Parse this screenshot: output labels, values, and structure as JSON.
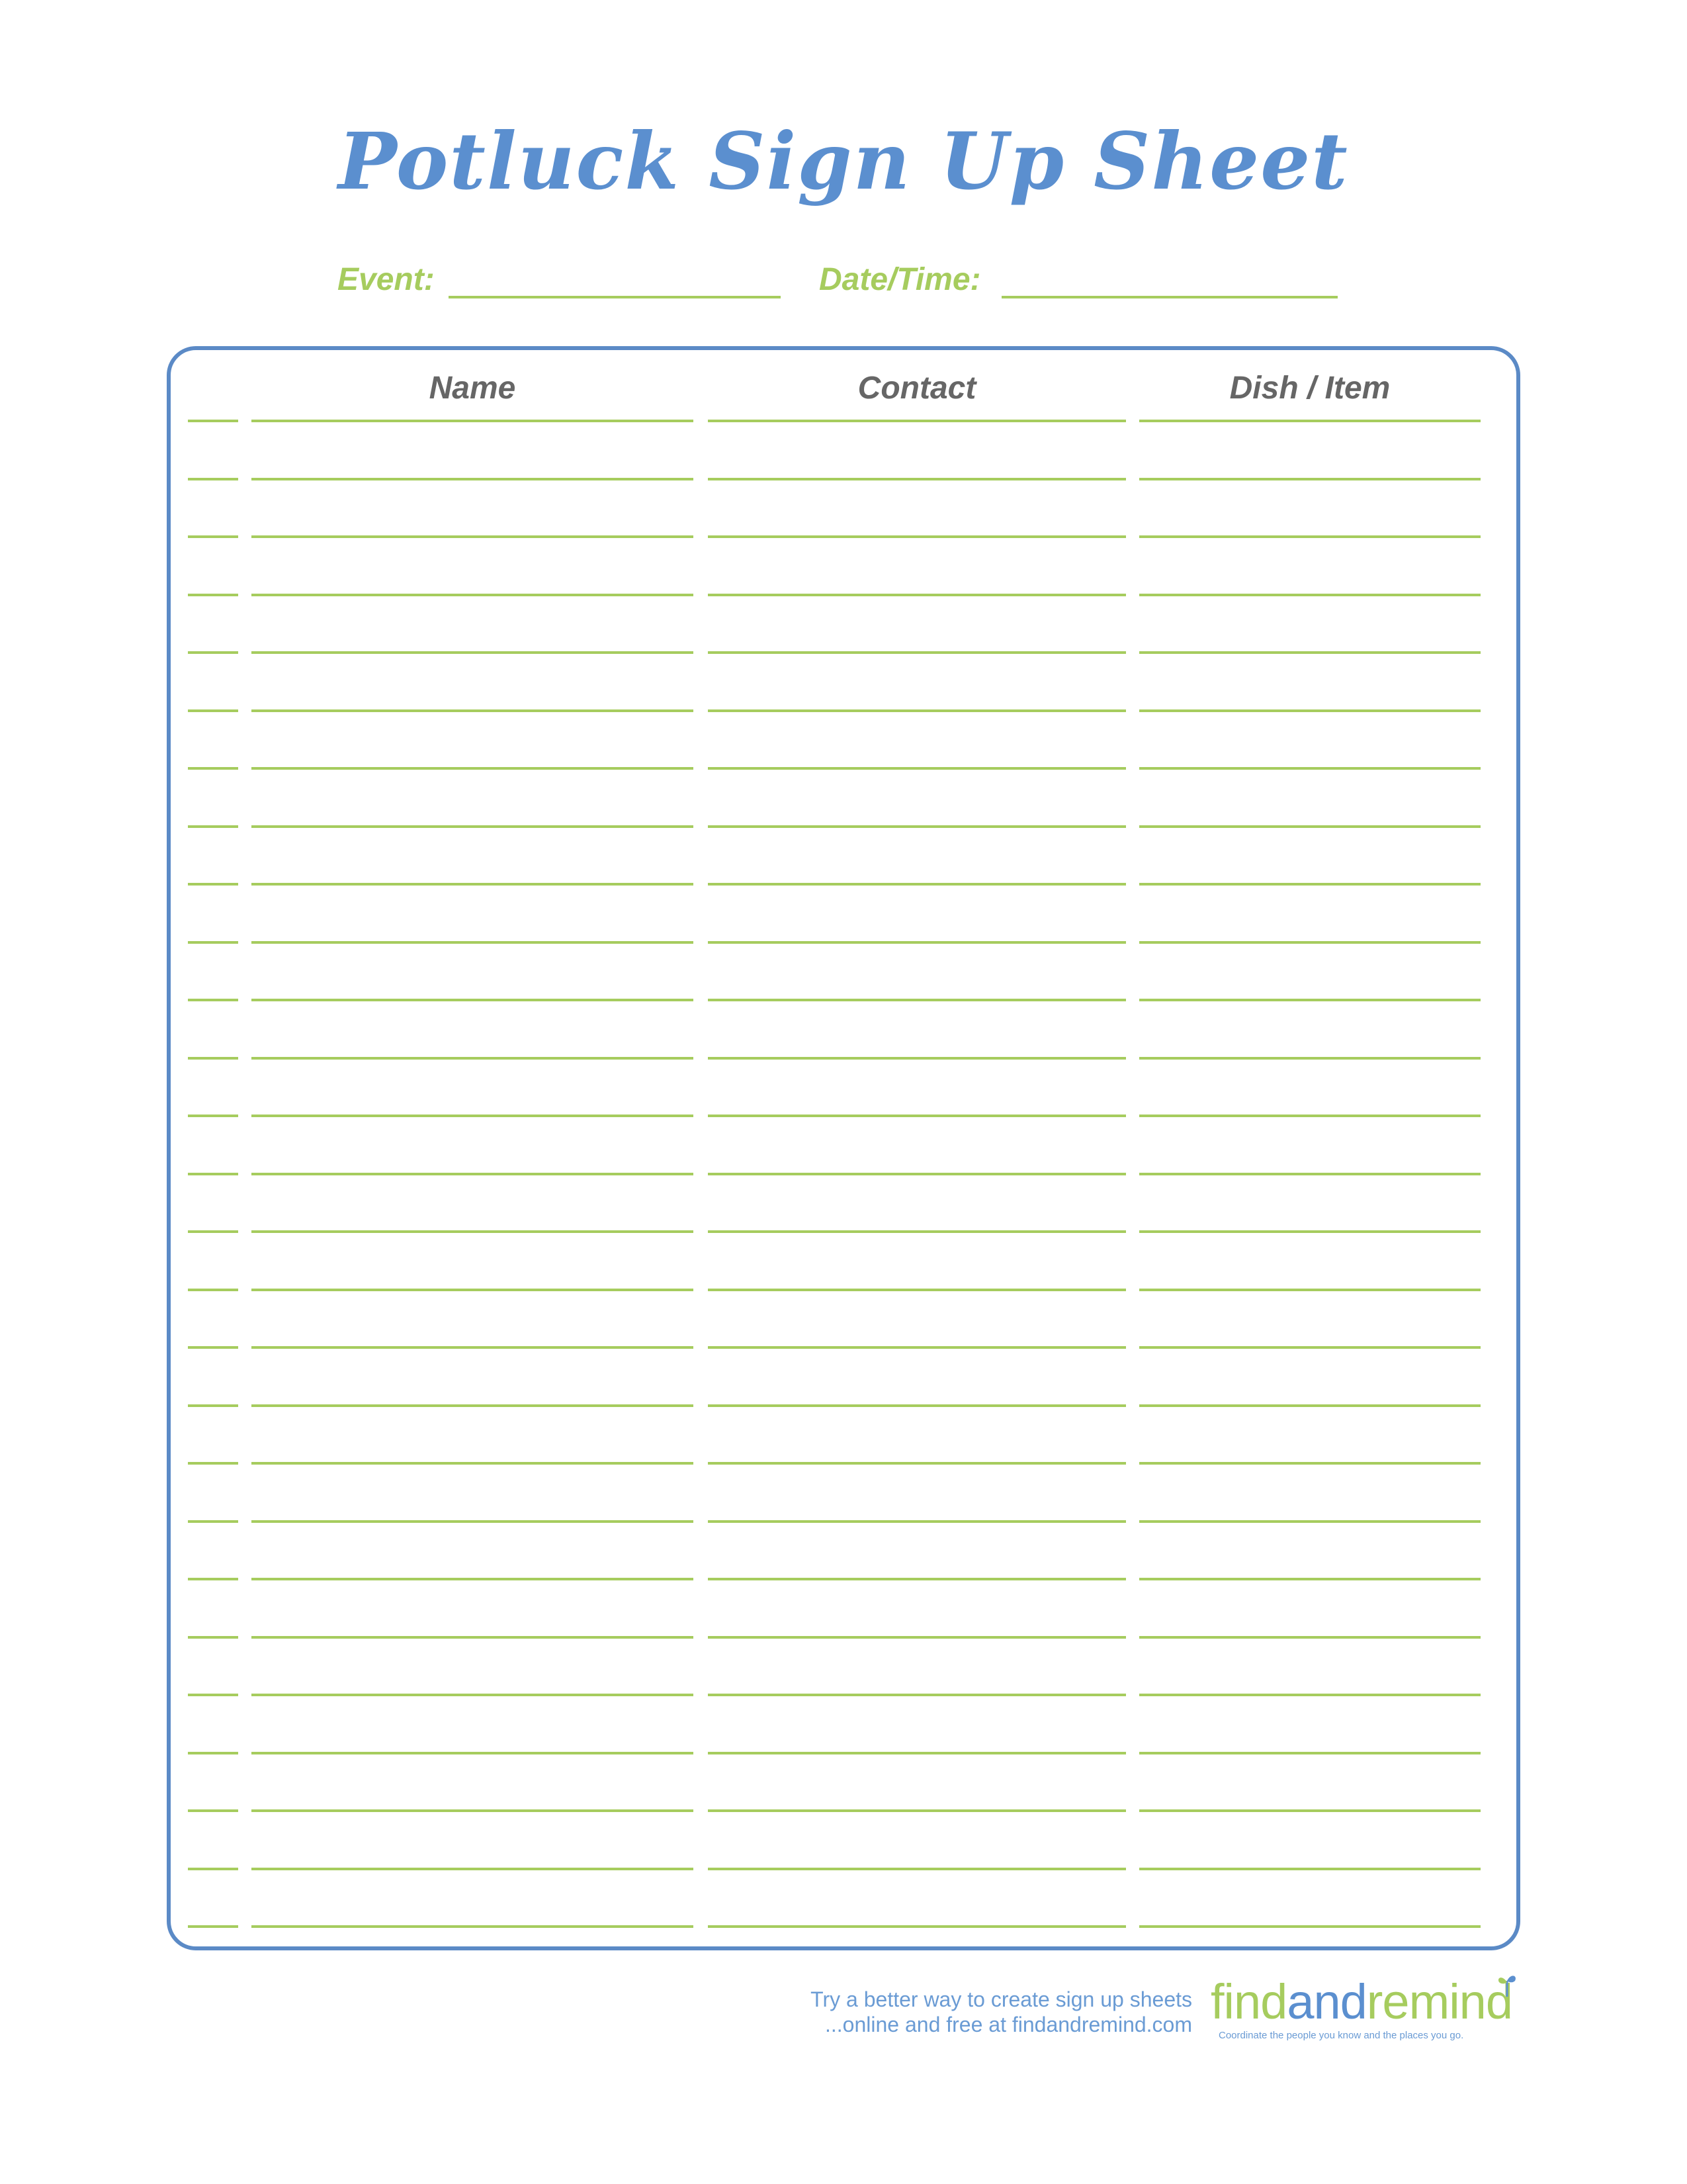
{
  "title": "Potluck Sign Up Sheet",
  "fields": {
    "event_label": "Event:",
    "datetime_label": "Date/Time:"
  },
  "columns": {
    "name": "Name",
    "contact": "Contact",
    "dish": "Dish / Item"
  },
  "row_count": 27,
  "footer": {
    "promo_line1": "Try a better way to create sign up sheets",
    "promo_line2": "...online and free at findandremind.com",
    "logo_part1": "find",
    "logo_part2": "and",
    "logo_part3": "remin",
    "logo_part4": "d",
    "tagline": "Coordinate the people you know and the places you go."
  },
  "colors": {
    "title_blue": "#5b8fcf",
    "accent_green": "#a6cc5e",
    "border_blue": "#5b8ac6",
    "header_gray": "#666666"
  }
}
